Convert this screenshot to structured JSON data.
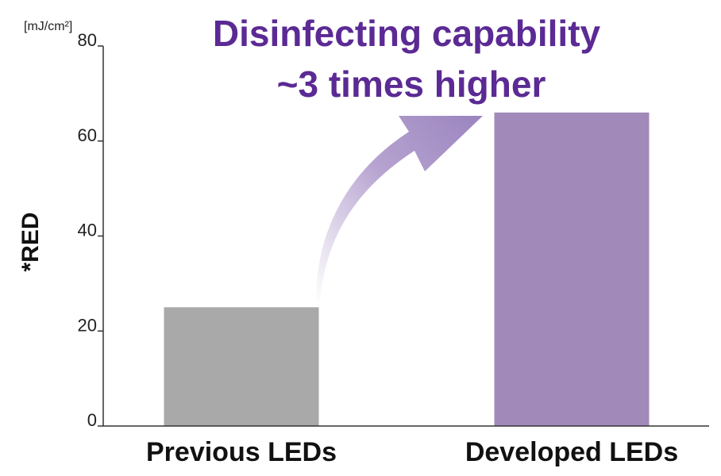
{
  "chart_data": {
    "type": "bar",
    "categories": [
      "Previous LEDs",
      "Developed LEDs"
    ],
    "values": [
      25,
      66
    ],
    "ylabel": "*RED",
    "unit": "[mJ/cm²]",
    "ylim": [
      0,
      80
    ],
    "yticks": [
      0,
      20,
      40,
      60,
      80
    ],
    "grid": false,
    "annotation": {
      "line1": "Disinfecting capability",
      "line2": "~3 times higher"
    },
    "colors": {
      "bars": [
        "#a9a9a9",
        "#a18aba"
      ],
      "annotation_text": "#5b2a94",
      "arrow": "#9b84bf",
      "axis": "#333333"
    }
  }
}
